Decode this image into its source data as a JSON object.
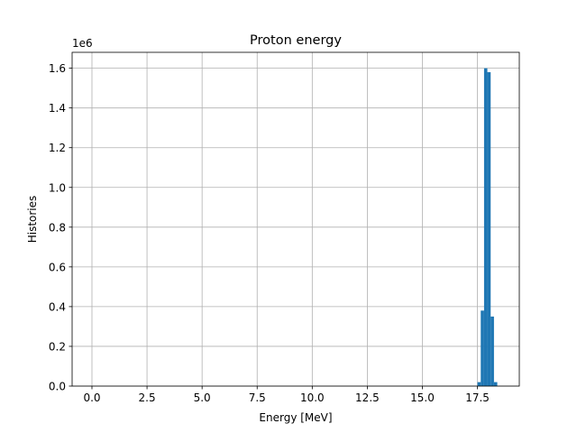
{
  "chart_data": {
    "type": "bar",
    "title": "Proton energy",
    "xlabel": "Energy [MeV]",
    "ylabel": "Histories",
    "y_offset_label": "1e6",
    "xlim": [
      -0.9,
      19.4
    ],
    "ylim": [
      0,
      1.68
    ],
    "grid": true,
    "xticks": [
      0.0,
      2.5,
      5.0,
      7.5,
      10.0,
      12.5,
      15.0,
      17.5
    ],
    "xtick_labels": [
      "0.0",
      "2.5",
      "5.0",
      "7.5",
      "10.0",
      "12.5",
      "15.0",
      "17.5"
    ],
    "yticks": [
      0.0,
      0.2,
      0.4,
      0.6,
      0.8,
      1.0,
      1.2,
      1.4,
      1.6
    ],
    "ytick_labels": [
      "0.0",
      "0.2",
      "0.4",
      "0.6",
      "0.8",
      "1.0",
      "1.2",
      "1.4",
      "1.6"
    ],
    "bar_color": "#1f77b4",
    "bins": [
      {
        "x0": 17.3,
        "x1": 17.5,
        "value": 0.0
      },
      {
        "x0": 17.5,
        "x1": 17.65,
        "value": 0.02
      },
      {
        "x0": 17.65,
        "x1": 17.8,
        "value": 0.38
      },
      {
        "x0": 17.8,
        "x1": 17.95,
        "value": 1.6
      },
      {
        "x0": 17.95,
        "x1": 18.1,
        "value": 1.58
      },
      {
        "x0": 18.1,
        "x1": 18.25,
        "value": 0.35
      },
      {
        "x0": 18.25,
        "x1": 18.4,
        "value": 0.02
      }
    ]
  }
}
